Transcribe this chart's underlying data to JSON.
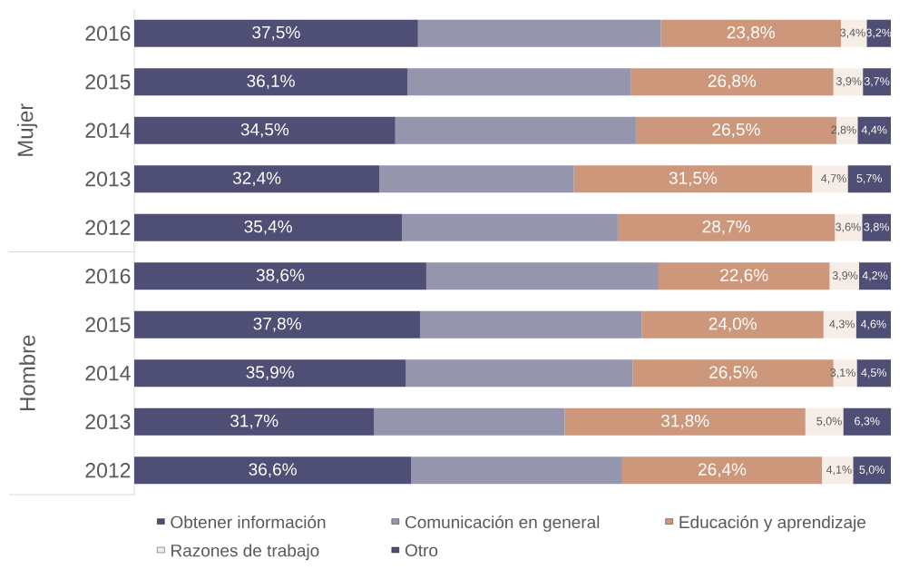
{
  "chart_data": {
    "type": "bar",
    "orientation": "horizontal",
    "stacked": true,
    "legend": "bottom",
    "tick_labels": "y",
    "xlim": [
      0,
      100
    ],
    "categories": [
      "2016",
      "2015",
      "2014",
      "2013",
      "2012",
      "2016",
      "2015",
      "2014",
      "2013",
      "2012"
    ],
    "annotations": [
      "Mujer",
      "Hombre"
    ],
    "series": [
      {
        "name": "Obtener información",
        "color": "#4f4e74",
        "values": [
          37.5,
          36.1,
          34.5,
          32.4,
          35.4,
          38.6,
          37.8,
          35.9,
          31.7,
          36.6
        ],
        "value_labels": [
          "37,5%",
          "36,1%",
          "34,5%",
          "32,4%",
          "35,4%",
          "38,6%",
          "37,8%",
          "35,9%",
          "31,7%",
          "36,6%"
        ]
      },
      {
        "name": "Comunicación en general",
        "color": "#9595ad",
        "values": [
          32.1,
          29.5,
          31.8,
          25.7,
          28.5,
          30.7,
          29.3,
          30.0,
          25.2,
          27.9
        ]
      },
      {
        "name": "Educación y aprendizaje",
        "color": "#cc977b",
        "values": [
          23.8,
          26.8,
          26.5,
          31.5,
          28.7,
          22.6,
          24.0,
          26.5,
          31.8,
          26.4
        ],
        "value_labels": [
          "23,8%",
          "26,8%",
          "26,5%",
          "31,5%",
          "28,7%",
          "22,6%",
          "24,0%",
          "26,5%",
          "31,8%",
          "26,4%"
        ]
      },
      {
        "name": "Razones de trabajo",
        "color": "#f7ede7",
        "values": [
          3.4,
          3.9,
          2.8,
          4.7,
          3.6,
          3.9,
          4.3,
          3.1,
          5.0,
          4.1
        ],
        "value_labels": [
          "3,4%",
          "3,9%",
          "2,8%",
          "4,7%",
          "3,6%",
          "3,9%",
          "4,3%",
          "3,1%",
          "5,0%",
          "4,1%"
        ]
      },
      {
        "name": "Otro",
        "color": "#4f4e74",
        "values": [
          3.2,
          3.7,
          4.4,
          5.7,
          3.8,
          4.2,
          4.6,
          4.5,
          6.3,
          5.0
        ],
        "value_labels": [
          "3,2%",
          "3,7%",
          "4,4%",
          "5,7%",
          "3,8%",
          "4,2%",
          "4,6%",
          "4,5%",
          "6,3%",
          "5,0%"
        ]
      }
    ]
  }
}
